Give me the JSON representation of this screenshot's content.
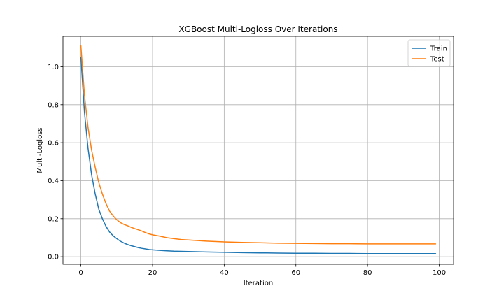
{
  "chart_data": {
    "type": "line",
    "title": "XGBoost Multi-Logloss Over Iterations",
    "xlabel": "Iteration",
    "ylabel": "Multi-Logloss",
    "xlim": [
      -5,
      104
    ],
    "ylim": [
      -0.04,
      1.16
    ],
    "xticks": [
      0,
      20,
      40,
      60,
      80,
      100
    ],
    "yticks": [
      0.0,
      0.2,
      0.4,
      0.6,
      0.8,
      1.0
    ],
    "grid": true,
    "legend_position": "top-right",
    "series": [
      {
        "name": "Train",
        "color": "#1f77b4",
        "x": [
          0,
          1,
          2,
          3,
          4,
          5,
          6,
          7,
          8,
          9,
          10,
          11,
          12,
          13,
          14,
          15,
          16,
          17,
          18,
          19,
          20,
          22,
          24,
          26,
          28,
          30,
          35,
          40,
          45,
          50,
          55,
          60,
          65,
          70,
          75,
          80,
          85,
          90,
          95,
          99
        ],
        "y": [
          1.05,
          0.76,
          0.57,
          0.43,
          0.33,
          0.25,
          0.2,
          0.16,
          0.13,
          0.11,
          0.095,
          0.082,
          0.072,
          0.064,
          0.058,
          0.053,
          0.048,
          0.044,
          0.041,
          0.038,
          0.036,
          0.033,
          0.031,
          0.029,
          0.028,
          0.027,
          0.025,
          0.023,
          0.021,
          0.02,
          0.019,
          0.018,
          0.018,
          0.017,
          0.017,
          0.016,
          0.016,
          0.016,
          0.016,
          0.016
        ]
      },
      {
        "name": "Test",
        "color": "#ff7f0e",
        "x": [
          0,
          1,
          2,
          3,
          4,
          5,
          6,
          7,
          8,
          9,
          10,
          11,
          12,
          13,
          14,
          15,
          16,
          17,
          18,
          19,
          20,
          22,
          24,
          26,
          28,
          30,
          35,
          40,
          45,
          50,
          55,
          60,
          65,
          70,
          75,
          80,
          85,
          90,
          95,
          99
        ],
        "y": [
          1.11,
          0.85,
          0.68,
          0.56,
          0.47,
          0.39,
          0.33,
          0.28,
          0.24,
          0.215,
          0.195,
          0.18,
          0.17,
          0.163,
          0.155,
          0.148,
          0.142,
          0.135,
          0.127,
          0.12,
          0.115,
          0.108,
          0.1,
          0.095,
          0.09,
          0.088,
          0.082,
          0.078,
          0.075,
          0.073,
          0.071,
          0.07,
          0.069,
          0.068,
          0.068,
          0.067,
          0.067,
          0.067,
          0.067,
          0.067
        ]
      }
    ]
  }
}
